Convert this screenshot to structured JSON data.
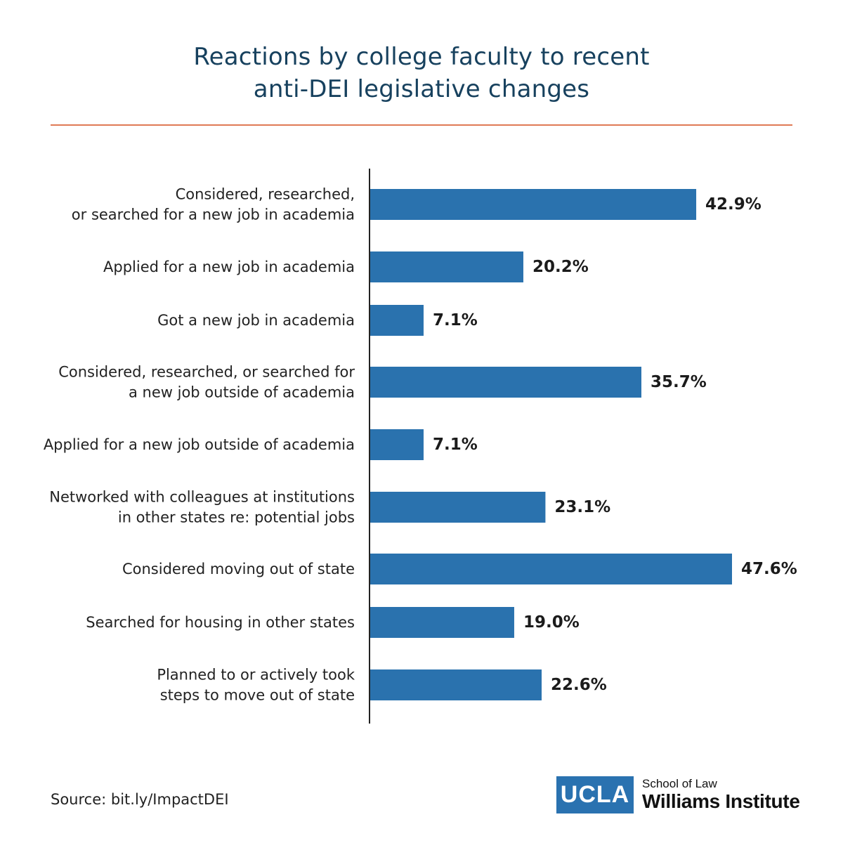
{
  "header": {
    "title_line1": "Reactions by college faculty to recent",
    "title_line2": "anti-DEI legislative changes"
  },
  "footer": {
    "source": "Source: bit.ly/ImpactDEI",
    "logo_mark": "UCLA",
    "logo_line1": "School of Law",
    "logo_line2": "Williams Institute"
  },
  "colors": {
    "bar": "#2a72ae",
    "title": "#17415e",
    "rule": "#e07a55",
    "axis": "#222222"
  },
  "chart_data": {
    "type": "bar",
    "orientation": "horizontal",
    "categories": [
      [
        "Considered, researched,",
        "or searched for a new job in academia"
      ],
      [
        "Applied for a new job in academia"
      ],
      [
        "Got a new job in academia"
      ],
      [
        "Considered, researched, or searched for",
        "a new job outside of academia"
      ],
      [
        "Applied for a new job outside of academia"
      ],
      [
        "Networked with colleagues at institutions",
        "in other states re: potential jobs"
      ],
      [
        "Considered moving out of state"
      ],
      [
        "Searched for housing in other states"
      ],
      [
        "Planned to or actively took",
        "steps to move out of state"
      ]
    ],
    "values": [
      42.9,
      20.2,
      7.1,
      35.7,
      7.1,
      23.1,
      47.6,
      19.0,
      22.6
    ],
    "value_labels": [
      "42.9%",
      "20.2%",
      "7.1%",
      "35.7%",
      "7.1%",
      "23.1%",
      "47.6%",
      "19.0%",
      "22.6%"
    ],
    "title": "Reactions by college faculty to recent anti-DEI legislative changes",
    "xlabel": "",
    "ylabel": "",
    "xlim": [
      0,
      47.6
    ],
    "grid": false
  }
}
